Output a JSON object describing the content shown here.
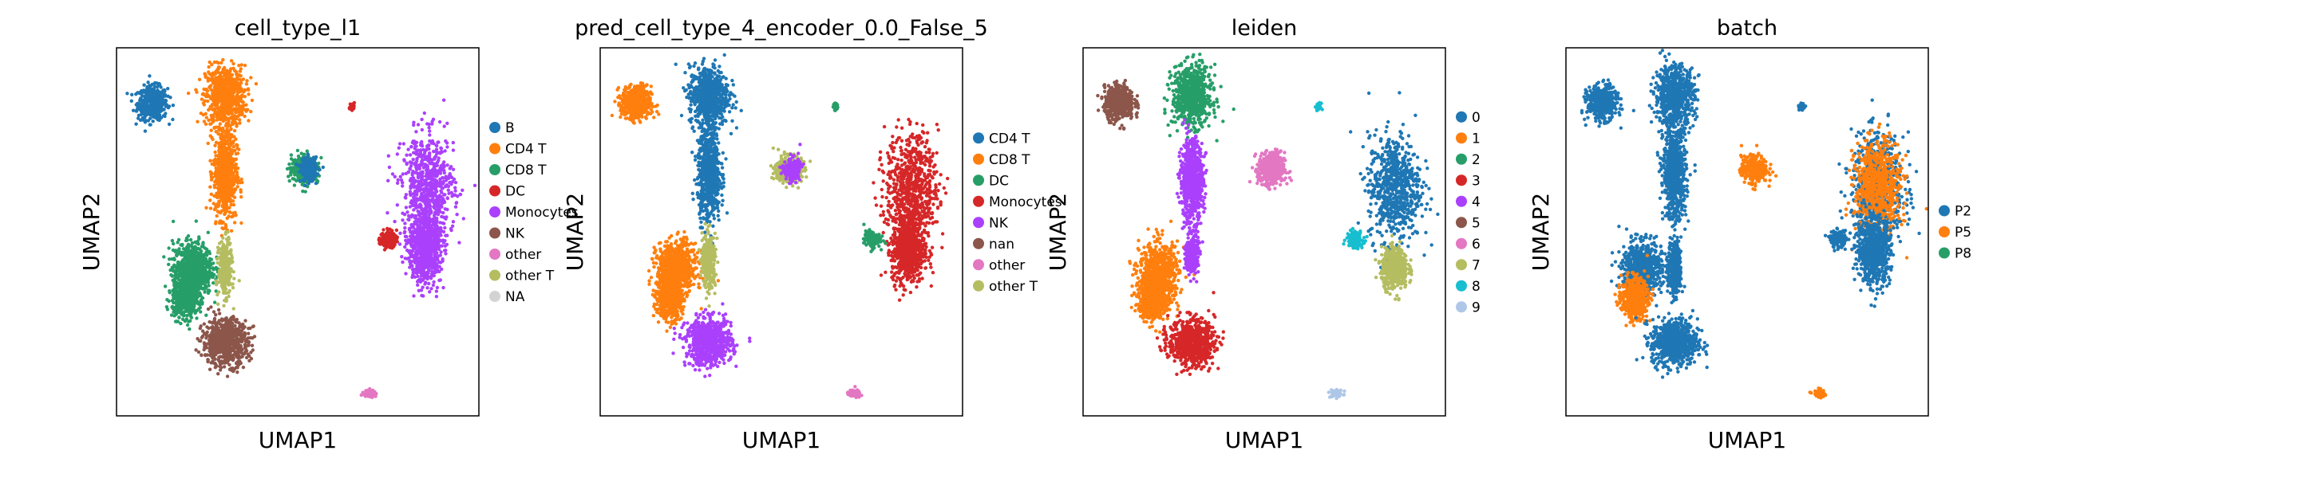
{
  "chart_data": [
    {
      "type": "scatter",
      "title": "cell_type_l1",
      "xlabel": "UMAP1",
      "ylabel": "UMAP2",
      "grid": false,
      "legend_position": "right",
      "legend": [
        {
          "label": "B",
          "color": "#1f77b4"
        },
        {
          "label": "CD4 T",
          "color": "#ff7f0e"
        },
        {
          "label": "CD8 T",
          "color": "#279e68"
        },
        {
          "label": "DC",
          "color": "#d62728"
        },
        {
          "label": "Monocytes",
          "color": "#aa40fc"
        },
        {
          "label": "NK",
          "color": "#8c564b"
        },
        {
          "label": "other",
          "color": "#e377c2"
        },
        {
          "label": "other T",
          "color": "#b5bd61"
        },
        {
          "label": "NA",
          "color": "#d3d3d3"
        }
      ],
      "clusters": [
        {
          "category": "B",
          "x": 0.1,
          "y": 0.85,
          "rx": 0.045,
          "ry": 0.05
        },
        {
          "category": "CD4 T",
          "x": 0.3,
          "y": 0.87,
          "rx": 0.06,
          "ry": 0.09
        },
        {
          "category": "CD4 T",
          "x": 0.3,
          "y": 0.66,
          "rx": 0.035,
          "ry": 0.14
        },
        {
          "category": "CD8 T",
          "x": 0.21,
          "y": 0.4,
          "rx": 0.06,
          "ry": 0.08
        },
        {
          "category": "CD8 T",
          "x": 0.19,
          "y": 0.32,
          "rx": 0.04,
          "ry": 0.06
        },
        {
          "category": "other T",
          "x": 0.3,
          "y": 0.4,
          "rx": 0.02,
          "ry": 0.08
        },
        {
          "category": "NK",
          "x": 0.3,
          "y": 0.2,
          "rx": 0.07,
          "ry": 0.07
        },
        {
          "category": "CD8 T",
          "x": 0.52,
          "y": 0.67,
          "rx": 0.04,
          "ry": 0.04
        },
        {
          "category": "B",
          "x": 0.53,
          "y": 0.67,
          "rx": 0.025,
          "ry": 0.035
        },
        {
          "category": "Monocytes",
          "x": 0.86,
          "y": 0.62,
          "rx": 0.08,
          "ry": 0.16
        },
        {
          "category": "Monocytes",
          "x": 0.85,
          "y": 0.45,
          "rx": 0.05,
          "ry": 0.1
        },
        {
          "category": "DC",
          "x": 0.75,
          "y": 0.48,
          "rx": 0.025,
          "ry": 0.025
        },
        {
          "category": "DC",
          "x": 0.65,
          "y": 0.84,
          "rx": 0.007,
          "ry": 0.01
        },
        {
          "category": "other",
          "x": 0.7,
          "y": 0.06,
          "rx": 0.02,
          "ry": 0.012
        }
      ]
    },
    {
      "type": "scatter",
      "title": "pred_cell_type_4_encoder_0.0_False_5",
      "xlabel": "UMAP1",
      "ylabel": "UMAP2",
      "grid": false,
      "legend_position": "right",
      "legend": [
        {
          "label": "CD4 T",
          "color": "#1f77b4"
        },
        {
          "label": "CD8 T",
          "color": "#ff7f0e"
        },
        {
          "label": "DC",
          "color": "#279e68"
        },
        {
          "label": "Monocytes",
          "color": "#d62728"
        },
        {
          "label": "NK",
          "color": "#aa40fc"
        },
        {
          "label": "nan",
          "color": "#8c564b"
        },
        {
          "label": "other",
          "color": "#e377c2"
        },
        {
          "label": "other T",
          "color": "#b5bd61"
        }
      ],
      "clusters": [
        {
          "category": "CD8 T",
          "x": 0.1,
          "y": 0.85,
          "rx": 0.045,
          "ry": 0.05
        },
        {
          "category": "CD4 T",
          "x": 0.3,
          "y": 0.87,
          "rx": 0.06,
          "ry": 0.09
        },
        {
          "category": "CD4 T",
          "x": 0.3,
          "y": 0.66,
          "rx": 0.035,
          "ry": 0.14
        },
        {
          "category": "CD8 T",
          "x": 0.21,
          "y": 0.4,
          "rx": 0.06,
          "ry": 0.08
        },
        {
          "category": "CD8 T",
          "x": 0.19,
          "y": 0.32,
          "rx": 0.04,
          "ry": 0.06
        },
        {
          "category": "other T",
          "x": 0.3,
          "y": 0.42,
          "rx": 0.02,
          "ry": 0.08
        },
        {
          "category": "NK",
          "x": 0.3,
          "y": 0.2,
          "rx": 0.07,
          "ry": 0.07
        },
        {
          "category": "other T",
          "x": 0.52,
          "y": 0.67,
          "rx": 0.04,
          "ry": 0.04
        },
        {
          "category": "NK",
          "x": 0.53,
          "y": 0.67,
          "rx": 0.025,
          "ry": 0.035
        },
        {
          "category": "Monocytes",
          "x": 0.86,
          "y": 0.62,
          "rx": 0.08,
          "ry": 0.16
        },
        {
          "category": "Monocytes",
          "x": 0.85,
          "y": 0.45,
          "rx": 0.05,
          "ry": 0.1
        },
        {
          "category": "DC",
          "x": 0.75,
          "y": 0.48,
          "rx": 0.025,
          "ry": 0.025
        },
        {
          "category": "DC",
          "x": 0.65,
          "y": 0.84,
          "rx": 0.007,
          "ry": 0.01
        },
        {
          "category": "other",
          "x": 0.7,
          "y": 0.06,
          "rx": 0.02,
          "ry": 0.012
        }
      ]
    },
    {
      "type": "scatter",
      "title": "leiden",
      "xlabel": "UMAP1",
      "ylabel": "UMAP2",
      "grid": false,
      "legend_position": "right",
      "legend": [
        {
          "label": "0",
          "color": "#1f77b4"
        },
        {
          "label": "1",
          "color": "#ff7f0e"
        },
        {
          "label": "2",
          "color": "#279e68"
        },
        {
          "label": "3",
          "color": "#d62728"
        },
        {
          "label": "4",
          "color": "#aa40fc"
        },
        {
          "label": "5",
          "color": "#8c564b"
        },
        {
          "label": "6",
          "color": "#e377c2"
        },
        {
          "label": "7",
          "color": "#b5bd61"
        },
        {
          "label": "8",
          "color": "#17becf"
        },
        {
          "label": "9",
          "color": "#aec7e8"
        }
      ],
      "clusters": [
        {
          "category": "5",
          "x": 0.1,
          "y": 0.85,
          "rx": 0.045,
          "ry": 0.05
        },
        {
          "category": "2",
          "x": 0.3,
          "y": 0.87,
          "rx": 0.06,
          "ry": 0.09
        },
        {
          "category": "4",
          "x": 0.3,
          "y": 0.64,
          "rx": 0.035,
          "ry": 0.12
        },
        {
          "category": "1",
          "x": 0.21,
          "y": 0.38,
          "rx": 0.06,
          "ry": 0.1
        },
        {
          "category": "1",
          "x": 0.19,
          "y": 0.32,
          "rx": 0.04,
          "ry": 0.06
        },
        {
          "category": "4",
          "x": 0.3,
          "y": 0.44,
          "rx": 0.02,
          "ry": 0.06
        },
        {
          "category": "3",
          "x": 0.3,
          "y": 0.2,
          "rx": 0.07,
          "ry": 0.07
        },
        {
          "category": "6",
          "x": 0.52,
          "y": 0.67,
          "rx": 0.04,
          "ry": 0.05
        },
        {
          "category": "0",
          "x": 0.86,
          "y": 0.62,
          "rx": 0.08,
          "ry": 0.16
        },
        {
          "category": "7",
          "x": 0.86,
          "y": 0.4,
          "rx": 0.04,
          "ry": 0.06
        },
        {
          "category": "8",
          "x": 0.75,
          "y": 0.48,
          "rx": 0.025,
          "ry": 0.025
        },
        {
          "category": "8",
          "x": 0.65,
          "y": 0.84,
          "rx": 0.007,
          "ry": 0.01
        },
        {
          "category": "9",
          "x": 0.7,
          "y": 0.06,
          "rx": 0.02,
          "ry": 0.012
        }
      ]
    },
    {
      "type": "scatter",
      "title": "batch",
      "xlabel": "UMAP1",
      "ylabel": "UMAP2",
      "grid": false,
      "legend_position": "right",
      "legend": [
        {
          "label": "P2",
          "color": "#1f77b4"
        },
        {
          "label": "P5",
          "color": "#ff7f0e"
        },
        {
          "label": "P8",
          "color": "#279e68"
        }
      ],
      "clusters": [
        {
          "category": "P2",
          "x": 0.1,
          "y": 0.85,
          "rx": 0.045,
          "ry": 0.05
        },
        {
          "category": "P2",
          "x": 0.3,
          "y": 0.87,
          "rx": 0.06,
          "ry": 0.09
        },
        {
          "category": "P2",
          "x": 0.3,
          "y": 0.66,
          "rx": 0.035,
          "ry": 0.14
        },
        {
          "category": "P2",
          "x": 0.21,
          "y": 0.4,
          "rx": 0.06,
          "ry": 0.08
        },
        {
          "category": "P5",
          "x": 0.19,
          "y": 0.32,
          "rx": 0.04,
          "ry": 0.06
        },
        {
          "category": "P2",
          "x": 0.3,
          "y": 0.4,
          "rx": 0.02,
          "ry": 0.08
        },
        {
          "category": "P2",
          "x": 0.3,
          "y": 0.2,
          "rx": 0.07,
          "ry": 0.07
        },
        {
          "category": "P5",
          "x": 0.52,
          "y": 0.67,
          "rx": 0.04,
          "ry": 0.04
        },
        {
          "category": "P2",
          "x": 0.86,
          "y": 0.62,
          "rx": 0.08,
          "ry": 0.16
        },
        {
          "category": "P5",
          "x": 0.86,
          "y": 0.62,
          "rx": 0.07,
          "ry": 0.14
        },
        {
          "category": "P2",
          "x": 0.85,
          "y": 0.45,
          "rx": 0.05,
          "ry": 0.1
        },
        {
          "category": "P2",
          "x": 0.75,
          "y": 0.48,
          "rx": 0.025,
          "ry": 0.025
        },
        {
          "category": "P2",
          "x": 0.65,
          "y": 0.84,
          "rx": 0.007,
          "ry": 0.01
        },
        {
          "category": "P5",
          "x": 0.7,
          "y": 0.06,
          "rx": 0.02,
          "ry": 0.012
        }
      ]
    }
  ]
}
